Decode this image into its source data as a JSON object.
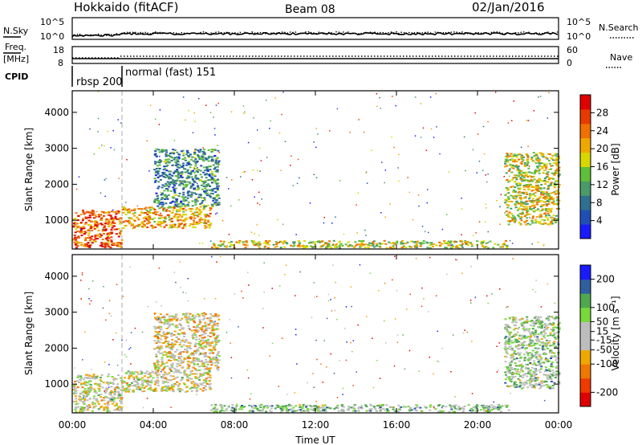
{
  "header": {
    "station": "Hokkaido (fitACF)",
    "beam": "Beam 08",
    "date": "02/Jan/2016"
  },
  "noise_panel": {
    "left_label": "N.Sky",
    "right_label": "N.Search",
    "left_ticks": [
      "10^5",
      "10^0"
    ],
    "right_ticks": [
      "10^5",
      "10^0"
    ]
  },
  "freq_panel": {
    "left_label": "Freq.",
    "left_unit": "[MHz]",
    "left_ticks": [
      "18",
      "8"
    ],
    "right_label": "Nave",
    "right_ticks": [
      "60",
      "0"
    ]
  },
  "cpid_panel": {
    "label": "CPID",
    "segments": [
      {
        "label": "rbsp 200",
        "start_hour": 0,
        "end_hour": 2.4
      },
      {
        "label": "normal (fast) 151",
        "start_hour": 2.4,
        "end_hour": 24
      }
    ]
  },
  "colors": {
    "power_scale": [
      "#1a1aff",
      "#1f4fb5",
      "#2f6f8f",
      "#4a9a6a",
      "#5fbf3a",
      "#d8d800",
      "#f0a800",
      "#f07000",
      "#e83a00",
      "#e00000"
    ],
    "velocity_scale": [
      "#e00000",
      "#f03a00",
      "#f07800",
      "#f0a800",
      "#bdbdbd",
      "#bdbdbd",
      "#78d83a",
      "#4fa84f",
      "#2f5f9f",
      "#1a1aff"
    ]
  },
  "chart_data": [
    {
      "type": "heatmap",
      "name": "power",
      "ylabel": "Slant Range [km]",
      "xlabel": "",
      "x_ticks": [
        "00:00",
        "04:00",
        "08:00",
        "12:00",
        "16:00",
        "20:00",
        "00:00"
      ],
      "y_ticks": [
        1000,
        2000,
        3000,
        4000
      ],
      "xlim": [
        0,
        24
      ],
      "ylim": [
        200,
        4600
      ],
      "colorbar": {
        "label": "Power [dB]",
        "ticks": [
          4,
          8,
          12,
          16,
          20,
          24,
          28
        ],
        "range": [
          0,
          32
        ]
      },
      "regions": [
        {
          "x0": 0,
          "x1": 2.4,
          "y0": 250,
          "y1": 1300,
          "level": 0.8
        },
        {
          "x0": 2.4,
          "x1": 6.8,
          "y0": 800,
          "y1": 1400,
          "level": 0.65
        },
        {
          "x0": 4.0,
          "x1": 7.2,
          "y0": 1400,
          "y1": 3000,
          "level": 0.3
        },
        {
          "x0": 6.8,
          "x1": 21.5,
          "y0": 250,
          "y1": 450,
          "level": 0.55
        },
        {
          "x0": 21.3,
          "x1": 24,
          "y0": 900,
          "y1": 2900,
          "level": 0.55
        }
      ]
    },
    {
      "type": "heatmap",
      "name": "velocity",
      "ylabel": "Slant Range [km]",
      "xlabel": "Time UT",
      "x_ticks": [
        "00:00",
        "04:00",
        "08:00",
        "12:00",
        "16:00",
        "20:00",
        "00:00"
      ],
      "y_ticks": [
        1000,
        2000,
        3000,
        4000
      ],
      "xlim": [
        0,
        24
      ],
      "ylim": [
        200,
        4600
      ],
      "colorbar": {
        "label": "Velocity [m s⁻¹]",
        "ticks": [
          200,
          100,
          50,
          15,
          -15,
          -50,
          -100,
          -200
        ],
        "range": [
          -250,
          250
        ]
      },
      "regions": [
        {
          "x0": 0,
          "x1": 2.4,
          "y0": 250,
          "y1": 1300,
          "level": 0.5
        },
        {
          "x0": 2.4,
          "x1": 6.8,
          "y0": 800,
          "y1": 1400,
          "level": 0.5
        },
        {
          "x0": 4.0,
          "x1": 7.2,
          "y0": 1400,
          "y1": 3000,
          "level": 0.45
        },
        {
          "x0": 6.8,
          "x1": 21.5,
          "y0": 250,
          "y1": 450,
          "level": 0.62
        },
        {
          "x0": 21.3,
          "x1": 24,
          "y0": 900,
          "y1": 2900,
          "level": 0.6
        }
      ]
    }
  ]
}
